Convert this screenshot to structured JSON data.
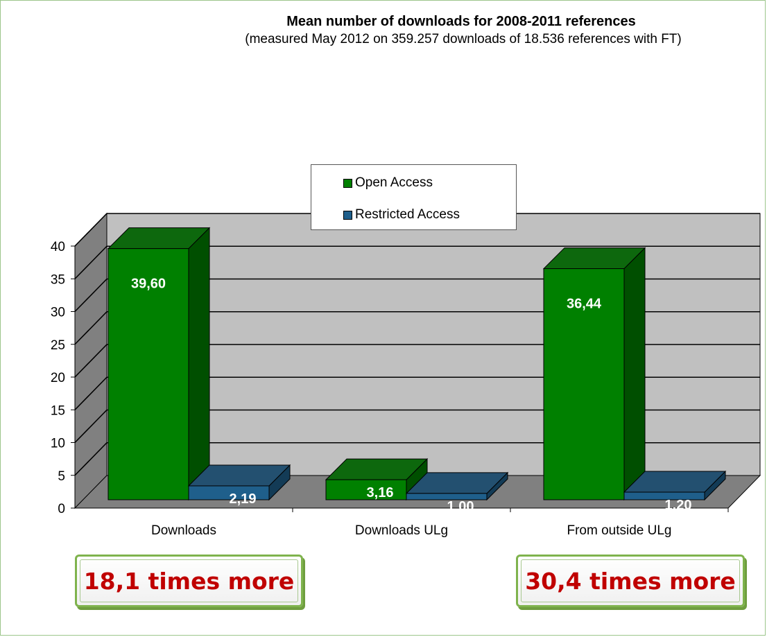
{
  "chart_data": {
    "type": "bar",
    "title": "Mean number of downloads for 2008-2011 references",
    "subtitle": "(measured May 2012 on 359.257 downloads of 18.536 references with FT)",
    "categories": [
      "Downloads",
      "Downloads ULg",
      "From outside ULg"
    ],
    "series": [
      {
        "name": "Open Access",
        "values": [
          39.6,
          3.16,
          36.44
        ],
        "labels": [
          "39,60",
          "3,16",
          "36,44"
        ],
        "color": "#008000"
      },
      {
        "name": "Restricted Access",
        "values": [
          2.19,
          1.0,
          1.2
        ],
        "labels": [
          "2,19",
          "1,00",
          "1,20"
        ],
        "color": "#1f5f8b"
      }
    ],
    "yticks": [
      "0",
      "5",
      "10",
      "15",
      "20",
      "25",
      "30",
      "35",
      "40"
    ],
    "ylim": [
      0,
      40
    ],
    "grid": true,
    "legend_position": "top-center",
    "three_d": true
  },
  "callouts": [
    {
      "text": "18,1 times more"
    },
    {
      "text": "30,4 times more"
    }
  ],
  "colors": {
    "wall": "#c0c0c0",
    "floor": "#808080",
    "callout_text": "#c00000",
    "callout_border": "#7fb34d"
  }
}
